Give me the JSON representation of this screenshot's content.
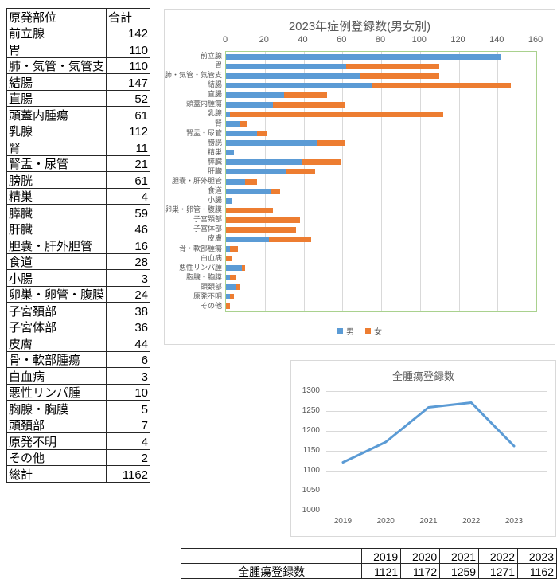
{
  "left_table": {
    "headers": [
      "原発部位",
      "合計"
    ],
    "rows": [
      [
        "前立腺",
        "142"
      ],
      [
        "胃",
        "110"
      ],
      [
        "肺・気管・気管支",
        "110"
      ],
      [
        "結腸",
        "147"
      ],
      [
        "直腸",
        "52"
      ],
      [
        "頭蓋内腫瘍",
        "61"
      ],
      [
        "乳腺",
        "112"
      ],
      [
        "腎",
        "11"
      ],
      [
        "腎盂・尿管",
        "21"
      ],
      [
        "膀胱",
        "61"
      ],
      [
        "精巣",
        "4"
      ],
      [
        "膵臓",
        "59"
      ],
      [
        "肝臓",
        "46"
      ],
      [
        "胆嚢・肝外胆管",
        "16"
      ],
      [
        "食道",
        "28"
      ],
      [
        "小腸",
        "3"
      ],
      [
        "卵巣・卵管・腹膜",
        "24"
      ],
      [
        "子宮頚部",
        "38"
      ],
      [
        "子宮体部",
        "36"
      ],
      [
        "皮膚",
        "44"
      ],
      [
        "骨・軟部腫瘍",
        "6"
      ],
      [
        "白血病",
        "3"
      ],
      [
        "悪性リンパ腫",
        "10"
      ],
      [
        "胸腺・胸膜",
        "5"
      ],
      [
        "頭頚部",
        "7"
      ],
      [
        "原発不明",
        "4"
      ],
      [
        "その他",
        "2"
      ],
      [
        "総計",
        "1162"
      ]
    ]
  },
  "chart_data": [
    {
      "type": "bar",
      "orientation": "horizontal",
      "stacked": true,
      "title": "2023年症例登録数(男女別)",
      "categories": [
        "前立腺",
        "胃",
        "肺・気管・気管支",
        "結腸",
        "直腸",
        "頭蓋内腫瘍",
        "乳腺",
        "腎",
        "腎盂・尿管",
        "膀胱",
        "精巣",
        "膵臓",
        "肝臓",
        "胆嚢・肝外胆管",
        "食道",
        "小腸",
        "卵巣・卵管・腹膜",
        "子宮頚部",
        "子宮体部",
        "皮膚",
        "骨・軟部腫瘍",
        "白血病",
        "悪性リンパ腫",
        "胸腺・胸膜",
        "頭頚部",
        "原発不明",
        "その他"
      ],
      "series": [
        {
          "name": "男",
          "color": "#5B9BD5",
          "values": [
            142,
            62,
            69,
            75,
            30,
            24,
            2,
            7,
            16,
            47,
            4,
            39,
            31,
            10,
            23,
            3,
            0,
            0,
            0,
            22,
            2,
            0,
            8,
            2,
            5,
            2,
            0
          ]
        },
        {
          "name": "女",
          "color": "#ED7D31",
          "values": [
            0,
            48,
            41,
            72,
            22,
            37,
            110,
            4,
            5,
            14,
            0,
            20,
            15,
            6,
            5,
            0,
            24,
            38,
            36,
            22,
            4,
            3,
            2,
            3,
            2,
            2,
            2
          ]
        }
      ],
      "xlim": [
        0,
        160
      ],
      "xticks": [
        0,
        20,
        40,
        60,
        80,
        100,
        120,
        140,
        160
      ],
      "legend_position": "bottom",
      "plot_border_color": "#A9D18E",
      "grid": true
    },
    {
      "type": "line",
      "title": "全腫瘍登録数",
      "x": [
        2019,
        2020,
        2021,
        2022,
        2023
      ],
      "values": [
        1121,
        1172,
        1259,
        1271,
        1162
      ],
      "ylim": [
        1000,
        1300
      ],
      "yticks": [
        1000,
        1050,
        1100,
        1150,
        1200,
        1250,
        1300
      ],
      "line_color": "#5B9BD5",
      "grid": true,
      "legend_position": "none"
    }
  ],
  "bottom_table": {
    "header": [
      "",
      "2019",
      "2020",
      "2021",
      "2022",
      "2023"
    ],
    "rows": [
      [
        "全腫瘍登録数",
        "1121",
        "1172",
        "1259",
        "1271",
        "1162"
      ]
    ]
  },
  "colors": {
    "male": "#5B9BD5",
    "female": "#ED7D31",
    "chart_text": "#595959",
    "gridline": "#D9D9D9",
    "plot_border": "#A9D18E",
    "chart_border": "#D9D9D9"
  }
}
